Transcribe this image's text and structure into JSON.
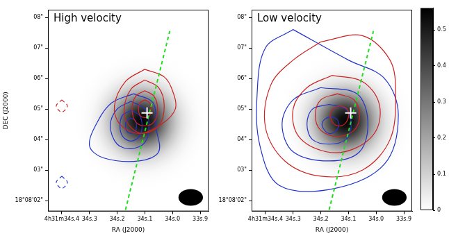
{
  "chart_data": {
    "type": "contour",
    "xlabel": "RA (J2000)",
    "ylabel": "DEC (J2000)",
    "xlim": [
      34.45,
      33.87
    ],
    "xticks": [
      {
        "value": 34.4,
        "label": "4h31m34s.4"
      },
      {
        "value": 34.3,
        "label": "34s.3"
      },
      {
        "value": 34.2,
        "label": "34s.2"
      },
      {
        "value": 34.1,
        "label": "34s.1"
      },
      {
        "value": 34.0,
        "label": "34s.0"
      },
      {
        "value": 33.9,
        "label": "33s.9"
      }
    ],
    "ylim": [
      1.65,
      8.25
    ],
    "yticks": [
      {
        "value": 2,
        "label": "18°08'02\""
      },
      {
        "value": 3,
        "label": "03\""
      },
      {
        "value": 4,
        "label": "04\""
      },
      {
        "value": 5,
        "label": "05\""
      },
      {
        "value": 6,
        "label": "06\""
      },
      {
        "value": 7,
        "label": "07\""
      },
      {
        "value": 8,
        "label": "08\""
      }
    ],
    "grid": false,
    "colorbar": {
      "range": [
        0,
        0.56
      ],
      "ticks": [
        0,
        0.1,
        0.2,
        0.3,
        0.4,
        0.5
      ]
    },
    "continuum": {
      "ra": 34.11,
      "dec": 4.6,
      "peak": 0.55,
      "fwhm": 1.5
    },
    "beam": {
      "major": 0.8,
      "minor": 0.55
    },
    "source": {
      "ra": 34.092,
      "dec": 4.87,
      "marker": "plus",
      "color": "#ffffff"
    },
    "outflow_axis": {
      "points": [
        [
          34.17,
          1.7
        ],
        [
          34.01,
          7.55
        ]
      ],
      "color": "#22dd22",
      "line_style": "dashed"
    },
    "panels": [
      {
        "title": "High velocity",
        "series": [
          {
            "color": "#cc2222",
            "line_style": "solid",
            "contours": [
              [
                [
                  34.1,
                  5.3
                ],
                [
                  34.083,
                  5.21
                ],
                [
                  34.077,
                  5.0
                ],
                [
                  34.083,
                  4.79
                ],
                [
                  34.1,
                  4.72
                ],
                [
                  34.117,
                  4.79
                ],
                [
                  34.123,
                  5.0
                ],
                [
                  34.117,
                  5.21
                ]
              ],
              [
                [
                  34.1,
                  5.6
                ],
                [
                  34.067,
                  5.42
                ],
                [
                  34.054,
                  5.0
                ],
                [
                  34.067,
                  4.58
                ],
                [
                  34.1,
                  4.45
                ],
                [
                  34.133,
                  4.58
                ],
                [
                  34.146,
                  5.0
                ],
                [
                  34.133,
                  5.42
                ]
              ],
              [
                [
                  34.1,
                  5.95
                ],
                [
                  34.05,
                  5.7
                ],
                [
                  34.03,
                  5.1
                ],
                [
                  34.05,
                  4.45
                ],
                [
                  34.11,
                  4.2
                ],
                [
                  34.16,
                  4.5
                ],
                [
                  34.175,
                  5.0
                ],
                [
                  34.15,
                  5.65
                ]
              ],
              [
                [
                  34.1,
                  6.3
                ],
                [
                  34.03,
                  6.05
                ],
                [
                  34.0,
                  5.6
                ],
                [
                  33.99,
                  5.0
                ],
                [
                  34.04,
                  4.5
                ],
                [
                  34.12,
                  4.2
                ],
                [
                  34.19,
                  4.5
                ],
                [
                  34.21,
                  5.1
                ],
                [
                  34.17,
                  5.9
                ]
              ]
            ]
          },
          {
            "color": "#cc2222",
            "line_style": "dashed",
            "contours": [
              [
                [
                  34.4,
                  5.3
                ],
                [
                  34.38,
                  5.1
                ],
                [
                  34.4,
                  4.9
                ],
                [
                  34.42,
                  5.1
                ]
              ]
            ]
          },
          {
            "color": "#2233cc",
            "line_style": "solid",
            "contours": [
              [
                [
                  34.15,
                  4.7
                ],
                [
                  34.135,
                  4.63
                ],
                [
                  34.13,
                  4.45
                ],
                [
                  34.135,
                  4.27
                ],
                [
                  34.15,
                  4.2
                ],
                [
                  34.165,
                  4.27
                ],
                [
                  34.17,
                  4.45
                ],
                [
                  34.165,
                  4.63
                ]
              ],
              [
                [
                  34.15,
                  4.95
                ],
                [
                  34.12,
                  4.8
                ],
                [
                  34.11,
                  4.45
                ],
                [
                  34.12,
                  4.1
                ],
                [
                  34.15,
                  3.95
                ],
                [
                  34.18,
                  4.1
                ],
                [
                  34.19,
                  4.45
                ],
                [
                  34.18,
                  4.8
                ]
              ],
              [
                [
                  34.15,
                  5.25
                ],
                [
                  34.1,
                  5.0
                ],
                [
                  34.085,
                  4.45
                ],
                [
                  34.1,
                  3.9
                ],
                [
                  34.15,
                  3.7
                ],
                [
                  34.2,
                  3.85
                ],
                [
                  34.225,
                  4.45
                ],
                [
                  34.2,
                  5.0
                ]
              ],
              [
                [
                  34.14,
                  5.5
                ],
                [
                  34.07,
                  5.2
                ],
                [
                  34.06,
                  4.4
                ],
                [
                  34.05,
                  3.6
                ],
                [
                  34.12,
                  3.3
                ],
                [
                  34.25,
                  3.4
                ],
                [
                  34.3,
                  3.8
                ],
                [
                  34.27,
                  4.6
                ],
                [
                  34.22,
                  5.2
                ]
              ]
            ]
          },
          {
            "color": "#2233cc",
            "line_style": "dashed",
            "contours": [
              [
                [
                  34.4,
                  2.8
                ],
                [
                  34.38,
                  2.6
                ],
                [
                  34.4,
                  2.4
                ],
                [
                  34.42,
                  2.6
                ]
              ]
            ]
          }
        ]
      },
      {
        "title": "Low velocity",
        "series": [
          {
            "color": "#cc2222",
            "line_style": "solid",
            "contours": [
              [
                [
                  34.13,
                  5.1
                ],
                [
                  34.105,
                  5.0
                ],
                [
                  34.1,
                  4.75
                ],
                [
                  34.115,
                  4.5
                ],
                [
                  34.14,
                  4.45
                ],
                [
                  34.16,
                  4.6
                ],
                [
                  34.165,
                  4.85
                ],
                [
                  34.15,
                  5.05
                ]
              ],
              [
                [
                  34.14,
                  5.5
                ],
                [
                  34.08,
                  5.3
                ],
                [
                  34.06,
                  4.8
                ],
                [
                  34.08,
                  4.3
                ],
                [
                  34.14,
                  4.1
                ],
                [
                  34.2,
                  4.3
                ],
                [
                  34.22,
                  4.8
                ],
                [
                  34.2,
                  5.3
                ]
              ],
              [
                [
                  34.16,
                  6.1
                ],
                [
                  34.05,
                  5.9
                ],
                [
                  33.99,
                  5.2
                ],
                [
                  34.0,
                  4.3
                ],
                [
                  34.08,
                  3.7
                ],
                [
                  34.18,
                  3.6
                ],
                [
                  34.28,
                  4.1
                ],
                [
                  34.3,
                  5.0
                ],
                [
                  34.25,
                  5.7
                ]
              ],
              [
                [
                  34.2,
                  7.2
                ],
                [
                  34.05,
                  7.4
                ],
                [
                  33.95,
                  6.6
                ],
                [
                  33.93,
                  5.5
                ],
                [
                  33.95,
                  4.0
                ],
                [
                  34.05,
                  3.0
                ],
                [
                  34.2,
                  2.8
                ],
                [
                  34.33,
                  3.3
                ],
                [
                  34.4,
                  4.4
                ],
                [
                  34.38,
                  5.8
                ],
                [
                  34.3,
                  6.6
                ]
              ]
            ]
          },
          {
            "color": "#2233cc",
            "line_style": "solid",
            "contours": [
              [
                [
                  34.16,
                  4.75
                ],
                [
                  34.14,
                  4.65
                ],
                [
                  34.135,
                  4.45
                ],
                [
                  34.15,
                  4.25
                ],
                [
                  34.17,
                  4.2
                ],
                [
                  34.19,
                  4.35
                ],
                [
                  34.195,
                  4.55
                ],
                [
                  34.18,
                  4.7
                ]
              ],
              [
                [
                  34.17,
                  5.15
                ],
                [
                  34.11,
                  5.0
                ],
                [
                  34.09,
                  4.5
                ],
                [
                  34.11,
                  4.0
                ],
                [
                  34.17,
                  3.85
                ],
                [
                  34.23,
                  4.0
                ],
                [
                  34.25,
                  4.5
                ],
                [
                  34.23,
                  5.0
                ]
              ],
              [
                [
                  34.2,
                  5.7
                ],
                [
                  34.07,
                  5.5
                ],
                [
                  34.03,
                  4.6
                ],
                [
                  34.06,
                  3.6
                ],
                [
                  34.17,
                  3.3
                ],
                [
                  34.3,
                  3.6
                ],
                [
                  34.34,
                  4.5
                ],
                [
                  34.3,
                  5.3
                ]
              ],
              [
                [
                  34.3,
                  7.6
                ],
                [
                  34.1,
                  6.6
                ],
                [
                  33.97,
                  6.0
                ],
                [
                  33.92,
                  4.8
                ],
                [
                  33.97,
                  3.2
                ],
                [
                  34.15,
                  2.4
                ],
                [
                  34.35,
                  2.5
                ],
                [
                  34.42,
                  3.8
                ],
                [
                  34.43,
                  5.5
                ],
                [
                  34.4,
                  7.0
                ]
              ]
            ]
          }
        ]
      }
    ]
  }
}
